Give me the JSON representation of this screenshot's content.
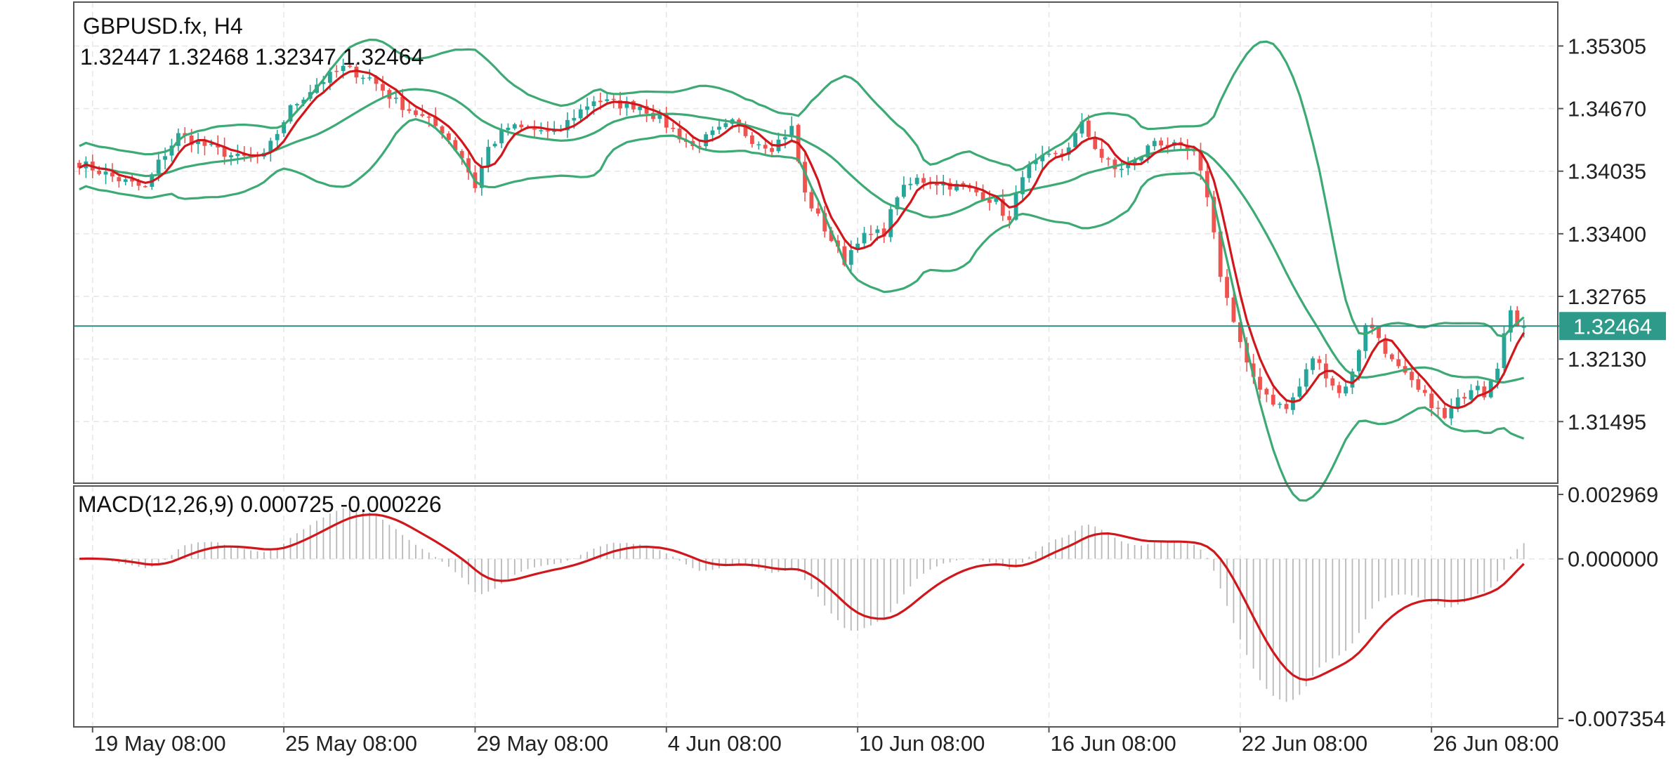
{
  "header": {
    "symbol_line": "GBPUSD.fx, H4",
    "ohlc_line": "1.32447 1.32468 1.32347 1.32464"
  },
  "macd_header": "MACD(12,26,9) 0.000725 -0.000226",
  "current_price_label": "1.32464",
  "colors": {
    "bull": "#26a69a",
    "bear": "#ef5350",
    "band": "#3daa76",
    "ma": "#d0171b",
    "price_line": "#2e8b80",
    "histogram": "#b8b8b8",
    "grid": "#e6e6e6",
    "frame": "#555555"
  },
  "chart_data": [
    {
      "type": "candlestick",
      "name": "price",
      "ylim": [
        1.3087,
        1.3575
      ],
      "y_ticks": [
        "1.35305",
        "1.34670",
        "1.34035",
        "1.33400",
        "1.32765",
        "1.32130",
        "1.31495"
      ],
      "x_ticks": [
        "19 May 08:00",
        "25 May 08:00",
        "29 May 08:00",
        "4 Jun 08:00",
        "10 Jun 08:00",
        "16 Jun 08:00",
        "22 Jun 08:00",
        "26 Jun 08:00"
      ],
      "x_tick_index": [
        2,
        31,
        60,
        89,
        118,
        147,
        176,
        205
      ],
      "bar_count": 220,
      "current_price": 1.32464,
      "close_anchors": [
        [
          0,
          1.3412
        ],
        [
          6,
          1.3395
        ],
        [
          10,
          1.3386
        ],
        [
          12,
          1.3412
        ],
        [
          15,
          1.344
        ],
        [
          18,
          1.3432
        ],
        [
          24,
          1.3417
        ],
        [
          28,
          1.3418
        ],
        [
          32,
          1.3467
        ],
        [
          36,
          1.3492
        ],
        [
          40,
          1.3508
        ],
        [
          44,
          1.3498
        ],
        [
          48,
          1.3474
        ],
        [
          52,
          1.3458
        ],
        [
          55,
          1.3445
        ],
        [
          58,
          1.3418
        ],
        [
          60,
          1.3388
        ],
        [
          62,
          1.3427
        ],
        [
          65,
          1.3448
        ],
        [
          70,
          1.3445
        ],
        [
          72,
          1.344
        ],
        [
          75,
          1.346
        ],
        [
          78,
          1.3476
        ],
        [
          82,
          1.3471
        ],
        [
          85,
          1.347
        ],
        [
          88,
          1.3456
        ],
        [
          90,
          1.3445
        ],
        [
          93,
          1.3428
        ],
        [
          96,
          1.3441
        ],
        [
          99,
          1.3452
        ],
        [
          102,
          1.3436
        ],
        [
          105,
          1.3428
        ],
        [
          108,
          1.3447
        ],
        [
          110,
          1.338
        ],
        [
          113,
          1.3345
        ],
        [
          116,
          1.3312
        ],
        [
          118,
          1.3335
        ],
        [
          122,
          1.3342
        ],
        [
          124,
          1.338
        ],
        [
          127,
          1.3395
        ],
        [
          130,
          1.3392
        ],
        [
          133,
          1.3388
        ],
        [
          136,
          1.3382
        ],
        [
          139,
          1.3372
        ],
        [
          141,
          1.3352
        ],
        [
          143,
          1.3402
        ],
        [
          146,
          1.3415
        ],
        [
          149,
          1.342
        ],
        [
          152,
          1.345
        ],
        [
          155,
          1.3418
        ],
        [
          157,
          1.3405
        ],
        [
          160,
          1.3412
        ],
        [
          163,
          1.3435
        ],
        [
          166,
          1.3428
        ],
        [
          169,
          1.342
        ],
        [
          171,
          1.338
        ],
        [
          173,
          1.33
        ],
        [
          175,
          1.325
        ],
        [
          177,
          1.3205
        ],
        [
          179,
          1.3185
        ],
        [
          181,
          1.317
        ],
        [
          183,
          1.3162
        ],
        [
          185,
          1.3185
        ],
        [
          187,
          1.3215
        ],
        [
          189,
          1.3198
        ],
        [
          191,
          1.3178
        ],
        [
          193,
          1.3198
        ],
        [
          195,
          1.325
        ],
        [
          197,
          1.3235
        ],
        [
          199,
          1.321
        ],
        [
          201,
          1.3195
        ],
        [
          203,
          1.318
        ],
        [
          205,
          1.3168
        ],
        [
          207,
          1.3152
        ],
        [
          209,
          1.317
        ],
        [
          211,
          1.3185
        ],
        [
          212,
          1.319
        ],
        [
          213,
          1.3178
        ],
        [
          214,
          1.3195
        ],
        [
          215,
          1.3208
        ],
        [
          216,
          1.3238
        ],
        [
          217,
          1.3258
        ],
        [
          218,
          1.325
        ],
        [
          219,
          1.32464
        ]
      ]
    },
    {
      "type": "macd",
      "name": "MACD(12,26,9)",
      "ylim": [
        -0.007354,
        0.002969
      ],
      "y_ticks": [
        "0.002969",
        "0.000000",
        "-0.007354"
      ],
      "values": {
        "main": 0.000725,
        "signal": -0.000226
      }
    }
  ]
}
